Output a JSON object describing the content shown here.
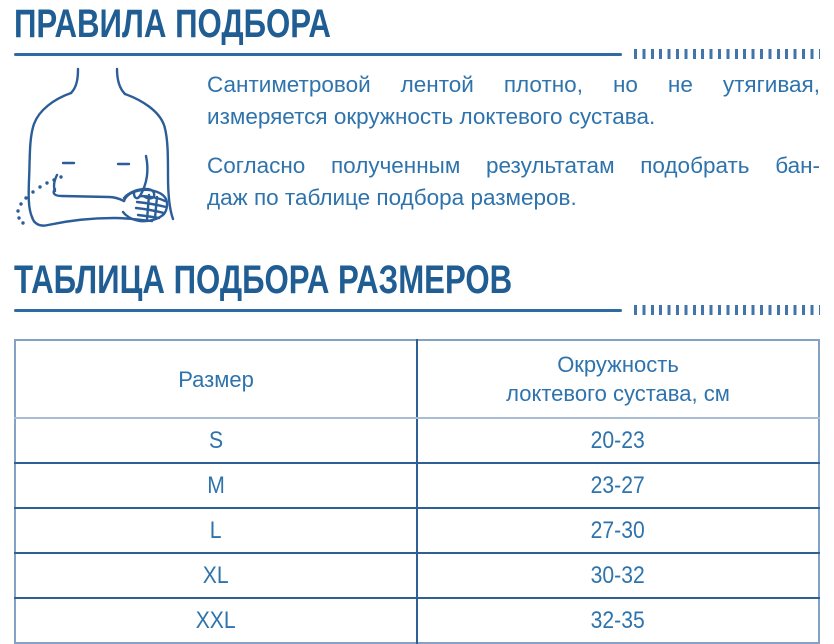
{
  "colors": {
    "heading": "#1f5d93",
    "body_text": "#2e73ac",
    "rule_line": "#2f6ba3",
    "tick_marks": "#4374a8",
    "table_border_outer": "#84a3c4",
    "table_border_inner": "#2e6093",
    "illustration_stroke": "#2b5d99"
  },
  "sections": {
    "rules": {
      "title": "ПРАВИЛА ПОДБОРА",
      "illustration": "torso-with-bent-arm-elbow-circumference-measurement",
      "paragraphs": [
        {
          "lines": [
            "Сантиметровой лентой плотно, но не утягивая,",
            "измеряется окружность локтевого сустава."
          ]
        },
        {
          "lines": [
            "Согласно полученным результатам подобрать бан-",
            "даж по таблице подбора размеров."
          ]
        }
      ]
    },
    "size_table": {
      "title": "ТАБЛИЦА ПОДБОРА РАЗМЕРОВ",
      "table": {
        "headers": [
          "Размер",
          "Окружность\nлоктевого сустава, см"
        ],
        "rows": [
          {
            "size": "S",
            "circumference": "20-23"
          },
          {
            "size": "M",
            "circumference": "23-27"
          },
          {
            "size": "L",
            "circumference": "27-30"
          },
          {
            "size": "XL",
            "circumference": "30-32"
          },
          {
            "size": "XXL",
            "circumference": "32-35"
          }
        ]
      }
    }
  }
}
